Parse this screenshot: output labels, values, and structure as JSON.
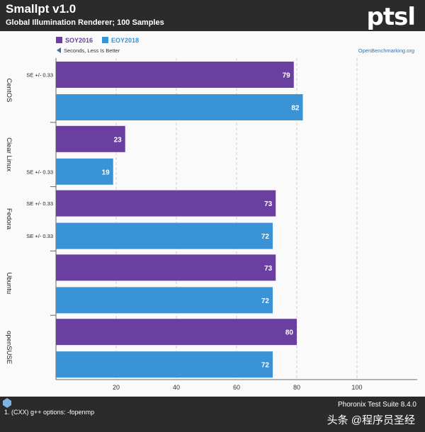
{
  "header": {
    "logo_text": "ptsl"
  },
  "chart_data": {
    "type": "bar",
    "orientation": "horizontal",
    "title": "Smallpt v1.0",
    "subtitle": "Global Illumination Renderer; 100 Samples",
    "note": "Seconds, Less Is Better",
    "source": "OpenBenchmarking.org",
    "categories": [
      "CentOS",
      "Clear Linux",
      "Fedora",
      "Ubuntu",
      "openSUSE"
    ],
    "series": [
      {
        "name": "SOY2016",
        "color": "#6b3fa0",
        "values": [
          79,
          23,
          73,
          73,
          80
        ],
        "se": [
          "SE +/- 0.33",
          "",
          "SE +/- 0.33",
          "",
          ""
        ]
      },
      {
        "name": "EOY2018",
        "color": "#3a93d6",
        "values": [
          82,
          19,
          72,
          72,
          72
        ],
        "se": [
          "",
          "SE +/- 0.33",
          "SE +/- 0.33",
          "",
          ""
        ]
      }
    ],
    "xlim": [
      0,
      120
    ],
    "xticks": [
      20,
      40,
      60,
      80,
      100
    ],
    "grid": true,
    "legend": "top-left"
  },
  "footer": {
    "suite": "Phoronix Test Suite 8.4.0",
    "note": "1. (CXX) g++ options: -fopenmp",
    "watermark": "头条 @程序员圣经"
  }
}
